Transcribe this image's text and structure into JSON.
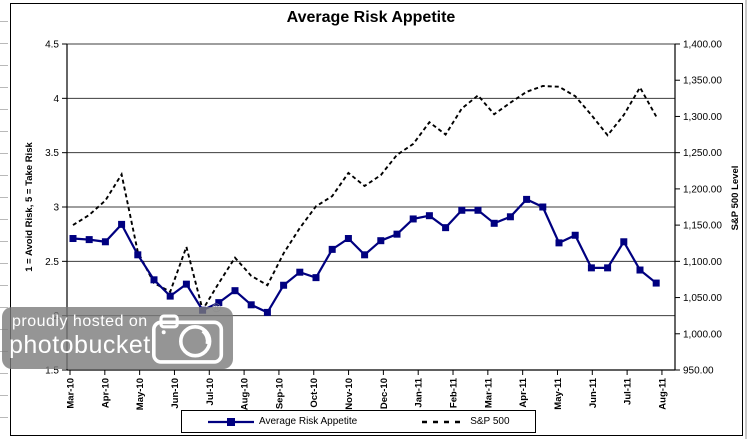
{
  "chart_data": {
    "type": "line",
    "title": "Average Risk Appetite",
    "y_left": {
      "label": "1 = Avoid Risk, 5 = Take Risk",
      "min": 1.5,
      "max": 4.5,
      "step": 0.5,
      "tick_labels": [
        "4.5",
        "4",
        "3.5",
        "3",
        "2.5",
        "2",
        "1.5"
      ]
    },
    "y_right": {
      "label": "S&P 500 Level",
      "min": 950,
      "max": 1400,
      "step": 50,
      "tick_labels": [
        "1,400.00",
        "1,350.00",
        "1,300.00",
        "1,250.00",
        "1,200.00",
        "1,150.00",
        "1,100.00",
        "1,050.00",
        "1,000.00",
        "950.00"
      ]
    },
    "x_tick_labels": [
      "Mar-10",
      "Apr-10",
      "May-10",
      "Jun-10",
      "Jul-10",
      "Aug-10",
      "Sep-10",
      "Oct-10",
      "Nov-10",
      "Dec-10",
      "Jan-11",
      "Feb-11",
      "Mar-11",
      "Apr-11",
      "May-11",
      "Jun-11",
      "Jul-11",
      "Aug-11"
    ],
    "grid": true,
    "legend_position": "bottom",
    "series": [
      {
        "name": "Average Risk Appetite",
        "axis": "left",
        "color": "#000080",
        "style": "solid",
        "marker": "square",
        "values": [
          2.71,
          2.7,
          2.68,
          2.84,
          2.56,
          2.33,
          2.18,
          2.29,
          2.05,
          2.12,
          2.23,
          2.1,
          2.03,
          2.28,
          2.4,
          2.35,
          2.61,
          2.71,
          2.56,
          2.69,
          2.75,
          2.89,
          2.92,
          2.81,
          2.97,
          2.97,
          2.85,
          2.91,
          3.07,
          3.0,
          2.67,
          2.74,
          2.44,
          2.44,
          2.68,
          2.42,
          2.3
        ]
      },
      {
        "name": "S&P 500",
        "axis": "right",
        "color": "#000000",
        "style": "dashed",
        "marker": "none",
        "values": [
          1150,
          1164,
          1184,
          1220,
          1113,
          1070,
          1058,
          1120,
          1033,
          1070,
          1105,
          1080,
          1067,
          1111,
          1146,
          1176,
          1190,
          1222,
          1204,
          1219,
          1247,
          1262,
          1292,
          1275,
          1311,
          1329,
          1303,
          1319,
          1334,
          1342,
          1341,
          1328,
          1302,
          1274,
          1302,
          1340,
          1300
        ]
      }
    ]
  },
  "watermark": {
    "line1": "proudly hosted on",
    "line2": "photobucket",
    "reg": "®"
  }
}
